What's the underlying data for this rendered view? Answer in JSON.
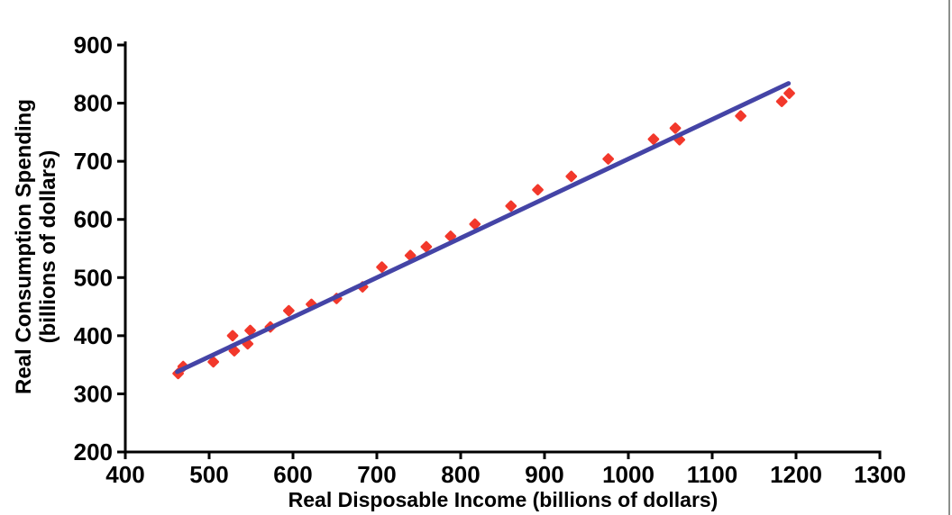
{
  "chart_data": {
    "type": "scatter",
    "title": "",
    "xlabel": "Real Disposable Income (billions of dollars)",
    "ylabel_line1": "Real Consumption Spending",
    "ylabel_line2": "(billions of dollars)",
    "xlim": [
      400,
      1300
    ],
    "ylim": [
      200,
      900
    ],
    "xticks": [
      400,
      500,
      600,
      700,
      800,
      900,
      1000,
      1100,
      1200,
      1300
    ],
    "yticks": [
      200,
      300,
      400,
      500,
      600,
      700,
      800,
      900
    ],
    "grid": false,
    "legend": "none",
    "axis_color": "#000000",
    "background_color": "#ffffff",
    "marker": {
      "shape": "diamond",
      "color": "#F2382B",
      "size": 14
    },
    "trendline": {
      "color": "#4444A6",
      "width": 5,
      "x1": 462,
      "y1": 338,
      "x2": 1191,
      "y2": 834,
      "equation_approx": "C = 24 + 0.68 YD"
    },
    "points": [
      [
        463,
        335
      ],
      [
        469,
        347
      ],
      [
        505,
        355
      ],
      [
        528,
        400
      ],
      [
        530,
        374
      ],
      [
        546,
        386
      ],
      [
        549,
        409
      ],
      [
        573,
        415
      ],
      [
        595,
        443
      ],
      [
        622,
        454
      ],
      [
        652,
        464
      ],
      [
        683,
        484
      ],
      [
        706,
        518
      ],
      [
        740,
        538
      ],
      [
        759,
        553
      ],
      [
        788,
        571
      ],
      [
        817,
        592
      ],
      [
        860,
        623
      ],
      [
        892,
        651
      ],
      [
        932,
        674
      ],
      [
        976,
        704
      ],
      [
        1030,
        738
      ],
      [
        1056,
        757
      ],
      [
        1061,
        737
      ],
      [
        1134,
        778
      ],
      [
        1183,
        803
      ],
      [
        1192,
        817
      ]
    ]
  }
}
